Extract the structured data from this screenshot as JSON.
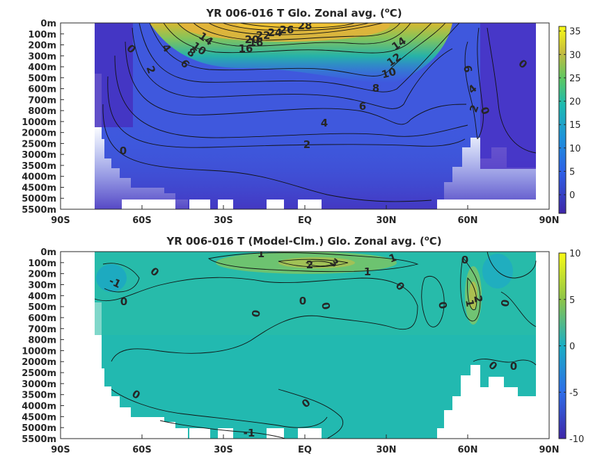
{
  "chart_data": [
    {
      "type": "heatmap",
      "title": "YR 006-016 T Glo. Zonal avg. (°C)",
      "title_main": "YR 006-016 T Glo. Zonal avg. (",
      "title_sup": "o",
      "title_end": "C)",
      "x_ticks": [
        "90S",
        "60S",
        "30S",
        "EQ",
        "30N",
        "60N",
        "90N"
      ],
      "x_values": [
        -90,
        -60,
        -30,
        0,
        30,
        60,
        90
      ],
      "y_ticks": [
        "0m",
        "100m",
        "200m",
        "300m",
        "400m",
        "500m",
        "600m",
        "700m",
        "800m",
        "1000m",
        "2000m",
        "2500m",
        "3000m",
        "3500m",
        "4000m",
        "4500m",
        "5000m",
        "5500m"
      ],
      "colorbar": {
        "ticks": [
          "35",
          "30",
          "25",
          "20",
          "15",
          "10",
          "5",
          "0"
        ],
        "values": [
          35,
          30,
          25,
          20,
          15,
          10,
          5,
          0
        ],
        "range": [
          -4,
          36
        ]
      },
      "contour_labels": [
        "28",
        "26",
        "24",
        "22",
        "20",
        "18",
        "16",
        "14",
        "14",
        "12",
        "10",
        "10",
        "8",
        "8",
        "6",
        "6",
        "6",
        "4",
        "4",
        "4",
        "2",
        "2",
        "2",
        "0",
        "0",
        "0",
        "0"
      ],
      "colormap": "parula",
      "grid": false
    },
    {
      "type": "heatmap",
      "title": "YR 006-016 T (Model-Clm.) Glo. Zonal avg. (°C)",
      "title_main": "YR 006-016 T (Model-Clm.) Glo. Zonal avg. (",
      "title_sup": "o",
      "title_end": "C)",
      "x_ticks": [
        "90S",
        "60S",
        "30S",
        "EQ",
        "30N",
        "60N",
        "90N"
      ],
      "x_values": [
        -90,
        -60,
        -30,
        0,
        30,
        60,
        90
      ],
      "y_ticks": [
        "0m",
        "100m",
        "200m",
        "300m",
        "400m",
        "500m",
        "600m",
        "700m",
        "800m",
        "1000m",
        "2000m",
        "2500m",
        "3000m",
        "3500m",
        "4000m",
        "4500m",
        "5000m",
        "5500m"
      ],
      "colorbar": {
        "ticks": [
          "10",
          "5",
          "0",
          "-5",
          "-10"
        ],
        "values": [
          10,
          5,
          0,
          -5,
          -10
        ],
        "range": [
          -10,
          10
        ]
      },
      "contour_labels": [
        "1",
        "1",
        "1",
        "2",
        "3",
        "1",
        "2",
        "0",
        "0",
        "0",
        "0",
        "0",
        "0",
        "0",
        "0",
        "0",
        "0",
        "0",
        "0",
        "0",
        "-1",
        "-1"
      ],
      "colormap": "parula",
      "grid": false
    }
  ]
}
